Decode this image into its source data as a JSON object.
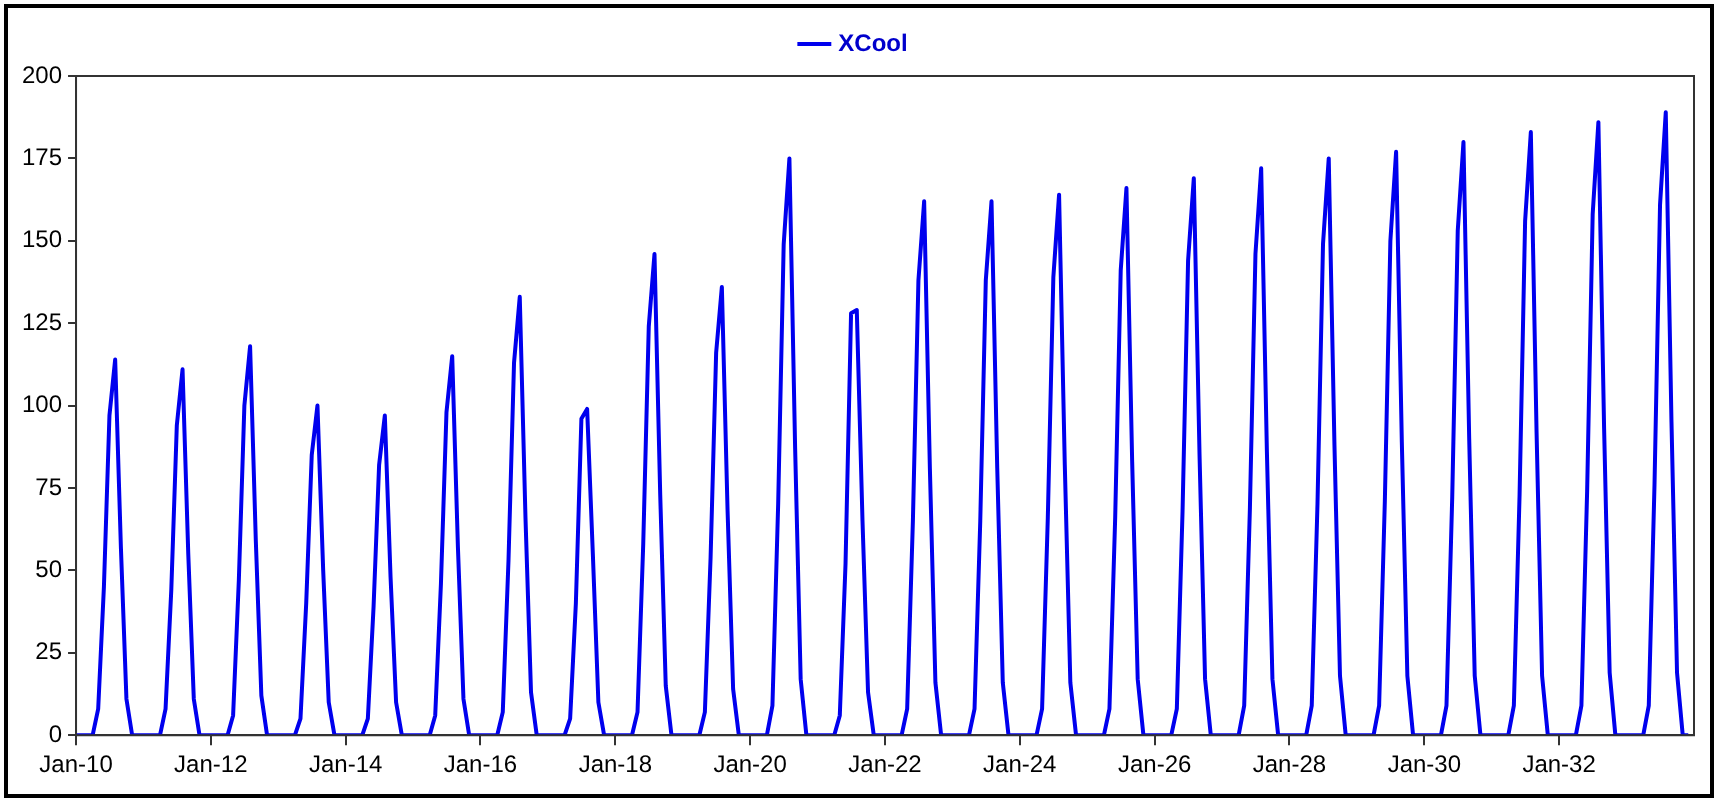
{
  "chart_data": {
    "type": "line",
    "legend": "top",
    "grid": false,
    "marker": "none",
    "line_style": "solid",
    "xlim": [
      "2010-01",
      "2034-01"
    ],
    "xticks": [
      {
        "value": "2010-01",
        "label": "Jan-10"
      },
      {
        "value": "2012-01",
        "label": "Jan-12"
      },
      {
        "value": "2014-01",
        "label": "Jan-14"
      },
      {
        "value": "2016-01",
        "label": "Jan-16"
      },
      {
        "value": "2018-01",
        "label": "Jan-18"
      },
      {
        "value": "2020-01",
        "label": "Jan-20"
      },
      {
        "value": "2022-01",
        "label": "Jan-22"
      },
      {
        "value": "2024-01",
        "label": "Jan-24"
      },
      {
        "value": "2026-01",
        "label": "Jan-26"
      },
      {
        "value": "2028-01",
        "label": "Jan-28"
      },
      {
        "value": "2030-01",
        "label": "Jan-30"
      },
      {
        "value": "2032-01",
        "label": "Jan-32"
      }
    ],
    "ylim": [
      0,
      200
    ],
    "yticks": [
      0,
      25,
      50,
      75,
      100,
      125,
      150,
      175,
      200
    ],
    "series": [
      {
        "name": "XCool",
        "color": "#0000ee",
        "x": [
          "2010-01",
          "2010-04",
          "2010-05",
          "2010-06",
          "2010-07",
          "2010-08",
          "2010-09",
          "2010-10",
          "2010-11",
          "2011-04",
          "2011-05",
          "2011-06",
          "2011-07",
          "2011-08",
          "2011-09",
          "2011-10",
          "2011-11",
          "2012-04",
          "2012-05",
          "2012-06",
          "2012-07",
          "2012-08",
          "2012-09",
          "2012-10",
          "2012-11",
          "2013-04",
          "2013-05",
          "2013-06",
          "2013-07",
          "2013-08",
          "2013-09",
          "2013-10",
          "2013-11",
          "2014-04",
          "2014-05",
          "2014-06",
          "2014-07",
          "2014-08",
          "2014-09",
          "2014-10",
          "2014-11",
          "2015-04",
          "2015-05",
          "2015-06",
          "2015-07",
          "2015-08",
          "2015-09",
          "2015-10",
          "2015-11",
          "2016-04",
          "2016-05",
          "2016-06",
          "2016-07",
          "2016-08",
          "2016-09",
          "2016-10",
          "2016-11",
          "2017-04",
          "2017-05",
          "2017-06",
          "2017-07",
          "2017-08",
          "2017-09",
          "2017-10",
          "2017-11",
          "2018-04",
          "2018-05",
          "2018-06",
          "2018-07",
          "2018-08",
          "2018-09",
          "2018-10",
          "2018-11",
          "2019-04",
          "2019-05",
          "2019-06",
          "2019-07",
          "2019-08",
          "2019-09",
          "2019-10",
          "2019-11",
          "2020-04",
          "2020-05",
          "2020-06",
          "2020-07",
          "2020-08",
          "2020-09",
          "2020-10",
          "2020-11",
          "2021-04",
          "2021-05",
          "2021-06",
          "2021-07",
          "2021-08",
          "2021-09",
          "2021-10",
          "2021-11",
          "2022-04",
          "2022-05",
          "2022-06",
          "2022-07",
          "2022-08",
          "2022-09",
          "2022-10",
          "2022-11",
          "2023-04",
          "2023-05",
          "2023-06",
          "2023-07",
          "2023-08",
          "2023-09",
          "2023-10",
          "2023-11",
          "2024-04",
          "2024-05",
          "2024-06",
          "2024-07",
          "2024-08",
          "2024-09",
          "2024-10",
          "2024-11",
          "2025-04",
          "2025-05",
          "2025-06",
          "2025-07",
          "2025-08",
          "2025-09",
          "2025-10",
          "2025-11",
          "2026-04",
          "2026-05",
          "2026-06",
          "2026-07",
          "2026-08",
          "2026-09",
          "2026-10",
          "2026-11",
          "2027-04",
          "2027-05",
          "2027-06",
          "2027-07",
          "2027-08",
          "2027-09",
          "2027-10",
          "2027-11",
          "2028-04",
          "2028-05",
          "2028-06",
          "2028-07",
          "2028-08",
          "2028-09",
          "2028-10",
          "2028-11",
          "2029-04",
          "2029-05",
          "2029-06",
          "2029-07",
          "2029-08",
          "2029-09",
          "2029-10",
          "2029-11",
          "2030-04",
          "2030-05",
          "2030-06",
          "2030-07",
          "2030-08",
          "2030-09",
          "2030-10",
          "2030-11",
          "2031-04",
          "2031-05",
          "2031-06",
          "2031-07",
          "2031-08",
          "2031-09",
          "2031-10",
          "2031-11",
          "2032-04",
          "2032-05",
          "2032-06",
          "2032-07",
          "2032-08",
          "2032-09",
          "2032-10",
          "2032-11",
          "2033-04",
          "2033-05",
          "2033-06",
          "2033-07",
          "2033-08",
          "2033-09",
          "2033-10",
          "2033-11",
          "2033-12"
        ],
        "values": [
          0,
          0,
          8,
          45,
          97,
          114,
          57,
          11,
          0,
          0,
          8,
          44,
          94,
          111,
          55,
          11,
          0,
          0,
          6,
          47,
          100,
          118,
          59,
          12,
          0,
          0,
          5,
          40,
          85,
          100,
          50,
          10,
          0,
          0,
          5,
          39,
          82,
          97,
          48,
          10,
          0,
          0,
          6,
          46,
          98,
          115,
          57,
          11,
          0,
          0,
          7,
          53,
          113,
          133,
          66,
          13,
          0,
          0,
          5,
          40,
          96,
          99,
          55,
          10,
          0,
          0,
          7,
          58,
          124,
          146,
          73,
          15,
          0,
          0,
          7,
          54,
          116,
          136,
          68,
          14,
          0,
          0,
          9,
          70,
          149,
          175,
          87,
          17,
          0,
          0,
          6,
          52,
          128,
          129,
          65,
          13,
          0,
          0,
          8,
          65,
          138,
          162,
          81,
          16,
          0,
          0,
          8,
          65,
          138,
          162,
          81,
          16,
          0,
          0,
          8,
          66,
          139,
          164,
          82,
          16,
          0,
          0,
          8,
          66,
          141,
          166,
          83,
          17,
          0,
          0,
          8,
          68,
          144,
          169,
          85,
          17,
          0,
          0,
          9,
          69,
          146,
          172,
          86,
          17,
          0,
          0,
          9,
          70,
          149,
          175,
          88,
          18,
          0,
          0,
          9,
          71,
          150,
          177,
          89,
          18,
          0,
          0,
          9,
          72,
          153,
          180,
          90,
          18,
          0,
          0,
          9,
          73,
          156,
          183,
          92,
          18,
          0,
          0,
          9,
          74,
          158,
          186,
          93,
          19,
          0,
          0,
          9,
          76,
          161,
          189,
          95,
          19,
          0,
          0
        ]
      }
    ]
  }
}
